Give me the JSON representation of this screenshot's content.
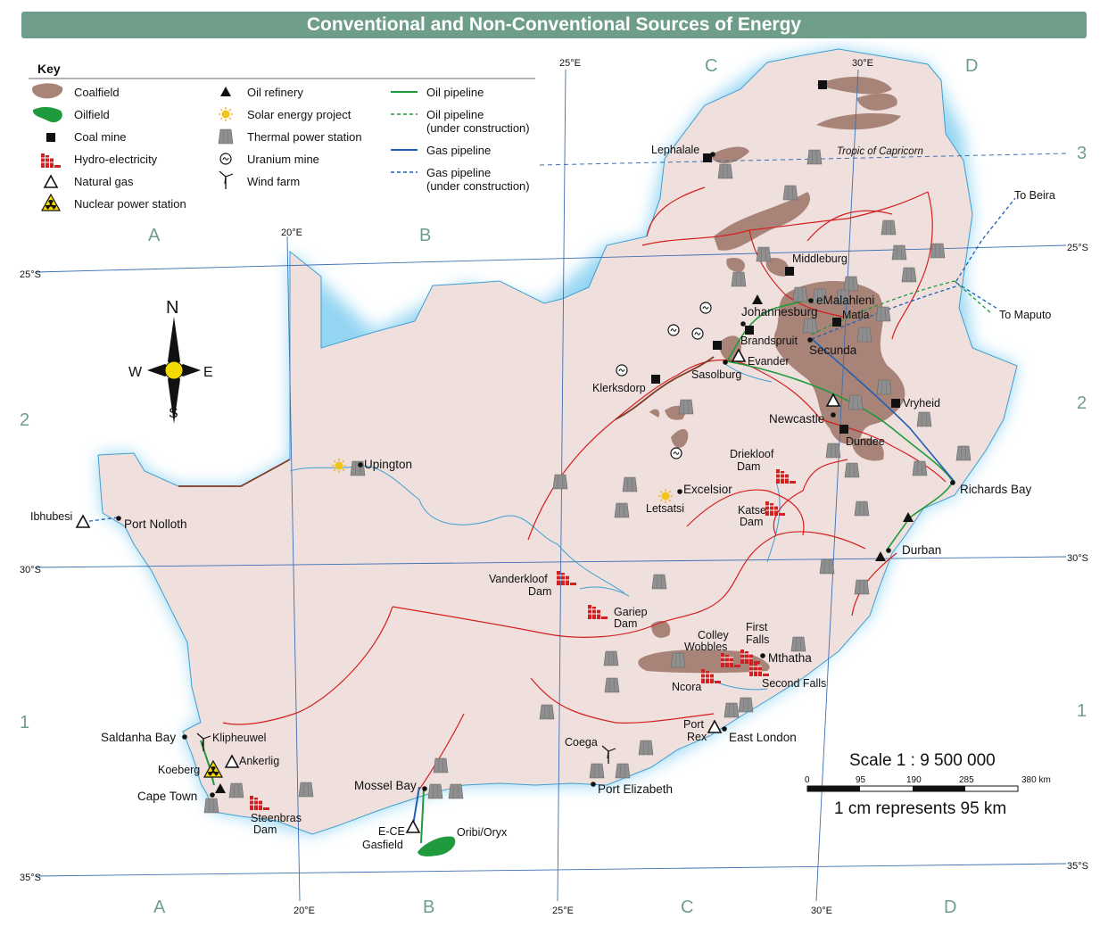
{
  "title": "Conventional and Non-Conventional Sources of Energy",
  "key": {
    "heading": "Key",
    "col1": [
      "Coalfield",
      "Oilfield",
      "Coal mine",
      "Hydro-electricity",
      "Natural gas",
      "Nuclear power station"
    ],
    "col2": [
      "Oil refinery",
      "Solar energy project",
      "Thermal power station",
      "Uranium mine",
      "Wind farm"
    ],
    "col3": [
      "Oil pipeline",
      "Oil pipeline",
      "(under construction)",
      "Gas pipeline",
      "Gas pipeline",
      "(under construction)"
    ]
  },
  "compass": {
    "n": "N",
    "s": "S",
    "e": "E",
    "w": "W"
  },
  "grid": {
    "cols_top": [
      "A",
      "B",
      "C",
      "D"
    ],
    "cols_bottom": [
      "A",
      "B",
      "C",
      "D"
    ],
    "rows_left": [
      "2",
      "1"
    ],
    "rows_right": [
      "3",
      "2",
      "1"
    ],
    "lon_top": [
      "20°E",
      "25°E",
      "30°E"
    ],
    "lon_bottom": [
      "20°E",
      "25°E",
      "30°E"
    ],
    "lat_left": [
      "25°S",
      "30°S",
      "35°S"
    ],
    "lat_right": [
      "25°S",
      "30°S",
      "35°S"
    ],
    "tropic": "Tropic of Capricorn"
  },
  "places": {
    "lephalale": "Lephalale",
    "middleburg": "Middleburg",
    "emalahleni": "eMalahleni",
    "johannesburg": "Johannesburg",
    "matla": "Matla",
    "brandspruit": "Brandspruit",
    "evander": "Evander",
    "secunda": "Secunda",
    "sasolburg": "Sasolburg",
    "klerksdorp": "Klerksdorp",
    "newcastle": "Newcastle",
    "vryheid": "Vryheid",
    "dundee": "Dundee",
    "richards_bay": "Richards Bay",
    "durban": "Durban",
    "upington": "Upington",
    "ibhubesi": "Ibhubesi",
    "port_nolloth": "Port Nolloth",
    "driekloof1": "Driekloof",
    "driekloof2": "Dam",
    "excelsior": "Excelsior",
    "letsatsi": "Letsatsi",
    "katse1": "Katse",
    "katse2": "Dam",
    "vanderkloof1": "Vanderkloof",
    "vanderkloof2": "Dam",
    "gariep1": "Gariep",
    "gariep2": "Dam",
    "colley1": "Colley",
    "colley2": "Wobbles",
    "firstfalls1": "First",
    "firstfalls2": "Falls",
    "mthatha": "Mthatha",
    "ncora": "Ncora",
    "secondfalls": "Second Falls",
    "portrex1": "Port",
    "portrex2": "Rex",
    "eastlondon": "East London",
    "coega": "Coega",
    "portelizabeth": "Port Elizabeth",
    "mosselbay": "Mossel Bay",
    "ece1": "E-CE",
    "ece2": "Gasfield",
    "oribi": "Oribi/Oryx",
    "saldanha": "Saldanha Bay",
    "klipheuwel": "Klipheuwel",
    "koeberg": "Koeberg",
    "ankerlig": "Ankerlig",
    "capetown": "Cape Town",
    "steenbras1": "Steenbras",
    "steenbras2": "Dam",
    "tobeira": "To Beira",
    "tomaputo": "To Maputo"
  },
  "scale": {
    "ratio": "Scale 1 : 9 500 000",
    "ticks": [
      "0",
      "95",
      "190",
      "285",
      "380 km"
    ],
    "statement": "1 cm represents 95 km"
  },
  "colors": {
    "land": "#efe0dd",
    "coalfield": "#a88478",
    "oilfield": "#1f9a3c",
    "sea_glow": "#bfe6f6",
    "province_border": "#d31f1f",
    "river": "#3fa0d0",
    "gridline": "#3d6fb4",
    "oil_pipeline": "#1f9a3c",
    "gas_pipeline": "#1f5fb4",
    "hydro": "#d31f1f",
    "title_bar": "#6e9e8a"
  }
}
